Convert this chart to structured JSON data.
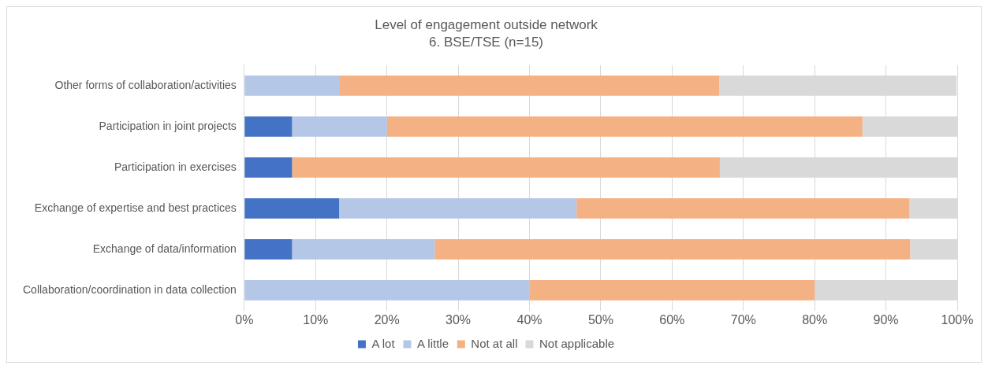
{
  "chart_data": {
    "type": "bar",
    "orientation": "horizontal",
    "stacked": true,
    "title": "Level of engagement outside network",
    "subtitle": "6. BSE/TSE (n=15)",
    "categories": [
      "Other forms of collaboration/activities",
      "Participation in joint projects",
      "Participation in exercises",
      "Exchange of expertise and best practices",
      "Exchange of data/information",
      "Collaboration/coordination in data collection"
    ],
    "series": [
      {
        "name": "A lot",
        "color": "#4472c4",
        "values": [
          0,
          6.7,
          6.7,
          13.3,
          6.7,
          0
        ]
      },
      {
        "name": "A little",
        "color": "#b4c7e7",
        "values": [
          13.3,
          13.3,
          0,
          33.3,
          20,
          40
        ]
      },
      {
        "name": "Not at all",
        "color": "#f4b183",
        "values": [
          53.3,
          66.7,
          60,
          46.7,
          66.7,
          40
        ]
      },
      {
        "name": "Not applicable",
        "color": "#d9d9d9",
        "values": [
          33.3,
          13.3,
          33.3,
          6.7,
          6.7,
          20
        ]
      }
    ],
    "xlim": [
      0,
      100
    ],
    "xticks": [
      {
        "value": 0,
        "label": "0%"
      },
      {
        "value": 10,
        "label": "10%"
      },
      {
        "value": 20,
        "label": "20%"
      },
      {
        "value": 30,
        "label": "30%"
      },
      {
        "value": 40,
        "label": "40%"
      },
      {
        "value": 50,
        "label": "50%"
      },
      {
        "value": 60,
        "label": "60%"
      },
      {
        "value": 70,
        "label": "70%"
      },
      {
        "value": 80,
        "label": "80%"
      },
      {
        "value": 90,
        "label": "90%"
      },
      {
        "value": 100,
        "label": "100%"
      }
    ],
    "grid": "x",
    "legend": "bottom"
  }
}
